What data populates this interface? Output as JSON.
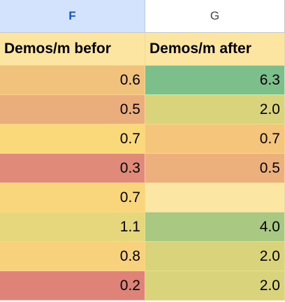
{
  "columns": [
    "F",
    "G"
  ],
  "header": [
    "Demos/m befor",
    "Demos/m after"
  ],
  "rows": [
    [
      "0.6",
      "6.3"
    ],
    [
      "0.5",
      "2.0"
    ],
    [
      "0.7",
      "0.7"
    ],
    [
      "0.3",
      "0.5"
    ],
    [
      "0.7",
      null
    ],
    [
      "1.1",
      "4.0"
    ],
    [
      "0.8",
      "2.0"
    ],
    [
      "0.2",
      "2.0"
    ]
  ],
  "fills": [
    [
      "#f0c27b",
      "#7cbf8b"
    ],
    [
      "#eaae7c",
      "#d9d47b"
    ],
    [
      "#fad97b",
      "#f5c57b"
    ],
    [
      "#e08a79",
      "#ebb07c"
    ],
    [
      "#f9d67b",
      "#fce6a3"
    ],
    [
      "#e6d67c",
      "#a9c983"
    ],
    [
      "#f7d17b",
      "#d9d47b"
    ],
    [
      "#df8379",
      "#d9d47b"
    ]
  ]
}
